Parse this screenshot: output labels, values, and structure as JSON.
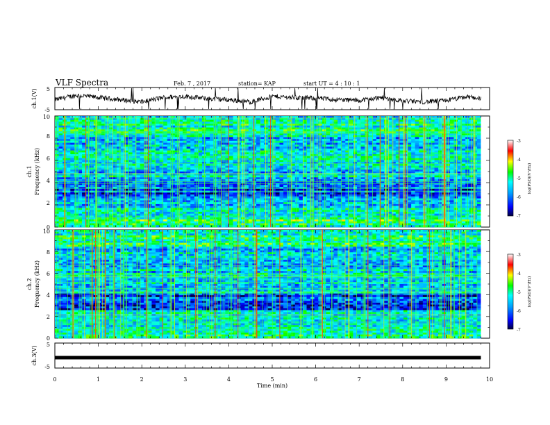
{
  "header": {
    "title": "VLF Spectra",
    "date": "Feb. 7 , 2017",
    "station": "station= KAP",
    "start_time": "start  UT =   4 : 10 : 1"
  },
  "chart_data": [
    {
      "type": "line",
      "panel": "ch1-waveform",
      "ylabel": "ch.1(V)",
      "ylim": [
        -5,
        5
      ],
      "yticks": [
        "5",
        "-5"
      ],
      "xlim": [
        0,
        10
      ],
      "series": [
        {
          "color": "#000000",
          "x": [
            0,
            0.5,
            1,
            1.5,
            2,
            2.5,
            3,
            3.5,
            4,
            4.5,
            5,
            5.5,
            6,
            6.5,
            7,
            7.5,
            8,
            8.5,
            9,
            9.5,
            9.8
          ],
          "values": [
            -0.5,
            1.5,
            0.5,
            -0.5,
            -1.5,
            0.5,
            1.0,
            0.0,
            -0.5,
            -1.5,
            1.0,
            0.5,
            0.2,
            -0.5,
            -0.8,
            0.5,
            -1.0,
            -1.5,
            -0.8,
            0.8,
            0.0
          ]
        }
      ]
    },
    {
      "type": "heatmap",
      "panel": "ch1-spectrogram",
      "ylabel": "ch.1",
      "ylabel2": "Frequency (kHz)",
      "ylim": [
        0,
        10
      ],
      "yticks": [
        "0",
        "2",
        "4",
        "6",
        "8",
        "10"
      ],
      "xlim": [
        0,
        9.8
      ],
      "colorbar": {
        "label": "log(PSD)(V²/Hz)",
        "range": [
          -7,
          -3
        ],
        "ticks": [
          "-3",
          "-4",
          "-5",
          "-6",
          "-7"
        ]
      }
    },
    {
      "type": "heatmap",
      "panel": "ch2-spectrogram",
      "ylabel": "ch.2",
      "ylabel2": "Frequency (kHz)",
      "ylim": [
        0,
        10
      ],
      "yticks": [
        "0",
        "2",
        "4",
        "6",
        "8",
        "10"
      ],
      "xlim": [
        0,
        9.8
      ],
      "colorbar": {
        "label": "log(PSD)(V²/Hz)",
        "range": [
          -7,
          -3
        ],
        "ticks": [
          "-3",
          "-4",
          "-5",
          "-6",
          "-7"
        ]
      }
    },
    {
      "type": "line",
      "panel": "ch3-waveform",
      "ylabel": "ch.3(V)",
      "ylim": [
        -5,
        5
      ],
      "yticks": [
        "5",
        "-5"
      ],
      "xlim": [
        0,
        10
      ],
      "series": [
        {
          "color": "#000000",
          "x": [
            0,
            9.8
          ],
          "values": [
            0,
            0
          ]
        }
      ]
    }
  ],
  "x_axis": {
    "label": "Time (min)",
    "ticks": [
      "0",
      "1",
      "2",
      "3",
      "4",
      "5",
      "6",
      "7",
      "8",
      "9",
      "10"
    ],
    "range": [
      0,
      10
    ]
  }
}
